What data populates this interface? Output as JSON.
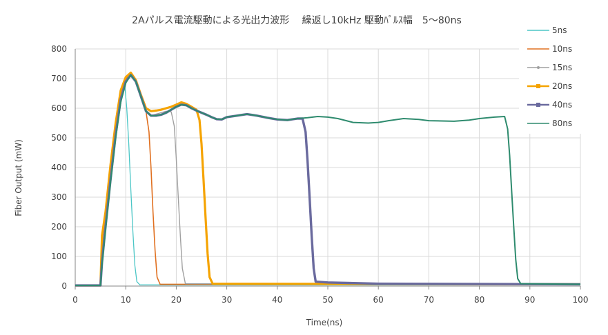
{
  "chart_data": {
    "type": "line",
    "title": "2Aパルス電流駆動による光出力波形　 繰返し10kHz 駆動ﾊﾟﾙｽ幅　5～80ns",
    "xlabel": "Time(ns)",
    "ylabel": "Fiber Output (mW)",
    "xlim": [
      0,
      100
    ],
    "ylim": [
      0,
      800
    ],
    "xticks": [
      0,
      10,
      20,
      30,
      40,
      50,
      60,
      70,
      80,
      90,
      100
    ],
    "yticks": [
      0,
      100,
      200,
      300,
      400,
      500,
      600,
      700,
      800
    ],
    "grid": true,
    "legend_position": "right",
    "series": [
      {
        "name": "5ns",
        "color": "#4BC6C6",
        "marker": "none",
        "points": [
          [
            0,
            2
          ],
          [
            5,
            2
          ],
          [
            5.3,
            110
          ],
          [
            6,
            210
          ],
          [
            7,
            380
          ],
          [
            8,
            530
          ],
          [
            9,
            640
          ],
          [
            9.8,
            680
          ],
          [
            10.2,
            600
          ],
          [
            10.6,
            480
          ],
          [
            11,
            330
          ],
          [
            11.4,
            190
          ],
          [
            11.8,
            70
          ],
          [
            12.2,
            15
          ],
          [
            12.8,
            4
          ],
          [
            100,
            4
          ]
        ]
      },
      {
        "name": "10ns",
        "color": "#E07020",
        "marker": "none",
        "points": [
          [
            0,
            2
          ],
          [
            5,
            2
          ],
          [
            5.3,
            120
          ],
          [
            6,
            230
          ],
          [
            7,
            390
          ],
          [
            8,
            540
          ],
          [
            9,
            650
          ],
          [
            10,
            700
          ],
          [
            11,
            712
          ],
          [
            12,
            690
          ],
          [
            13,
            640
          ],
          [
            14,
            590
          ],
          [
            14.6,
            520
          ],
          [
            15,
            400
          ],
          [
            15.4,
            250
          ],
          [
            15.8,
            120
          ],
          [
            16.2,
            30
          ],
          [
            16.8,
            6
          ],
          [
            100,
            5
          ]
        ]
      },
      {
        "name": "15ns",
        "color": "#A0A0A0",
        "marker": "dot",
        "points": [
          [
            0,
            2
          ],
          [
            5,
            2
          ],
          [
            5.3,
            115
          ],
          [
            6,
            225
          ],
          [
            7,
            385
          ],
          [
            8,
            535
          ],
          [
            9,
            645
          ],
          [
            10,
            695
          ],
          [
            11,
            710
          ],
          [
            12,
            690
          ],
          [
            13,
            640
          ],
          [
            14,
            590
          ],
          [
            15,
            575
          ],
          [
            16,
            580
          ],
          [
            17,
            585
          ],
          [
            18,
            590
          ],
          [
            19,
            588
          ],
          [
            19.6,
            540
          ],
          [
            20,
            430
          ],
          [
            20.4,
            300
          ],
          [
            20.8,
            170
          ],
          [
            21.2,
            60
          ],
          [
            21.8,
            8
          ],
          [
            100,
            5
          ]
        ]
      },
      {
        "name": "20ns",
        "color": "#F5A300",
        "marker": "square",
        "points": [
          [
            0,
            2
          ],
          [
            5,
            2
          ],
          [
            5.3,
            170
          ],
          [
            6,
            250
          ],
          [
            7,
            410
          ],
          [
            8,
            550
          ],
          [
            9,
            660
          ],
          [
            10,
            705
          ],
          [
            11,
            720
          ],
          [
            12,
            695
          ],
          [
            13,
            645
          ],
          [
            14,
            600
          ],
          [
            15,
            590
          ],
          [
            16,
            592
          ],
          [
            17,
            595
          ],
          [
            18,
            600
          ],
          [
            19,
            605
          ],
          [
            20,
            612
          ],
          [
            21,
            620
          ],
          [
            22,
            615
          ],
          [
            23,
            605
          ],
          [
            24,
            595
          ],
          [
            24.6,
            560
          ],
          [
            25,
            480
          ],
          [
            25.4,
            360
          ],
          [
            25.8,
            230
          ],
          [
            26.2,
            110
          ],
          [
            26.6,
            30
          ],
          [
            27.2,
            8
          ],
          [
            100,
            6
          ]
        ]
      },
      {
        "name": "40ns",
        "color": "#6A6A9E",
        "marker": "square",
        "points": [
          [
            0,
            2
          ],
          [
            5,
            2
          ],
          [
            5.3,
            80
          ],
          [
            6,
            200
          ],
          [
            7,
            360
          ],
          [
            8,
            510
          ],
          [
            9,
            630
          ],
          [
            10,
            690
          ],
          [
            11,
            712
          ],
          [
            12,
            690
          ],
          [
            13,
            640
          ],
          [
            14,
            590
          ],
          [
            15,
            575
          ],
          [
            16,
            575
          ],
          [
            17,
            578
          ],
          [
            18,
            585
          ],
          [
            19,
            595
          ],
          [
            20,
            605
          ],
          [
            21,
            612
          ],
          [
            22,
            610
          ],
          [
            23,
            600
          ],
          [
            24,
            592
          ],
          [
            25,
            585
          ],
          [
            26,
            578
          ],
          [
            27,
            570
          ],
          [
            28,
            563
          ],
          [
            29,
            562
          ],
          [
            30,
            570
          ],
          [
            32,
            575
          ],
          [
            34,
            580
          ],
          [
            36,
            575
          ],
          [
            38,
            568
          ],
          [
            40,
            562
          ],
          [
            42,
            560
          ],
          [
            44,
            565
          ],
          [
            45,
            565
          ],
          [
            45.6,
            520
          ],
          [
            46,
            420
          ],
          [
            46.4,
            300
          ],
          [
            46.8,
            170
          ],
          [
            47.2,
            60
          ],
          [
            47.6,
            15
          ],
          [
            50,
            12
          ],
          [
            60,
            8
          ],
          [
            100,
            6
          ]
        ]
      },
      {
        "name": "80ns",
        "color": "#2E8B6E",
        "marker": "dash",
        "points": [
          [
            0,
            2
          ],
          [
            5,
            2
          ],
          [
            5.3,
            70
          ],
          [
            6,
            190
          ],
          [
            7,
            350
          ],
          [
            8,
            500
          ],
          [
            9,
            620
          ],
          [
            10,
            685
          ],
          [
            11,
            712
          ],
          [
            12,
            690
          ],
          [
            13,
            640
          ],
          [
            14,
            590
          ],
          [
            15,
            575
          ],
          [
            16,
            575
          ],
          [
            17,
            578
          ],
          [
            18,
            585
          ],
          [
            19,
            595
          ],
          [
            20,
            605
          ],
          [
            21,
            612
          ],
          [
            22,
            610
          ],
          [
            23,
            600
          ],
          [
            24,
            592
          ],
          [
            25,
            585
          ],
          [
            26,
            578
          ],
          [
            27,
            570
          ],
          [
            28,
            563
          ],
          [
            29,
            562
          ],
          [
            30,
            570
          ],
          [
            32,
            575
          ],
          [
            34,
            580
          ],
          [
            36,
            575
          ],
          [
            38,
            568
          ],
          [
            40,
            562
          ],
          [
            42,
            560
          ],
          [
            44,
            565
          ],
          [
            46,
            568
          ],
          [
            48,
            572
          ],
          [
            50,
            570
          ],
          [
            52,
            565
          ],
          [
            55,
            552
          ],
          [
            58,
            550
          ],
          [
            60,
            552
          ],
          [
            62,
            558
          ],
          [
            65,
            565
          ],
          [
            68,
            562
          ],
          [
            70,
            558
          ],
          [
            75,
            556
          ],
          [
            78,
            560
          ],
          [
            80,
            565
          ],
          [
            83,
            570
          ],
          [
            85,
            572
          ],
          [
            85.6,
            530
          ],
          [
            86,
            440
          ],
          [
            86.4,
            320
          ],
          [
            86.8,
            200
          ],
          [
            87.2,
            90
          ],
          [
            87.6,
            25
          ],
          [
            88.2,
            8
          ],
          [
            100,
            6
          ]
        ]
      }
    ]
  }
}
